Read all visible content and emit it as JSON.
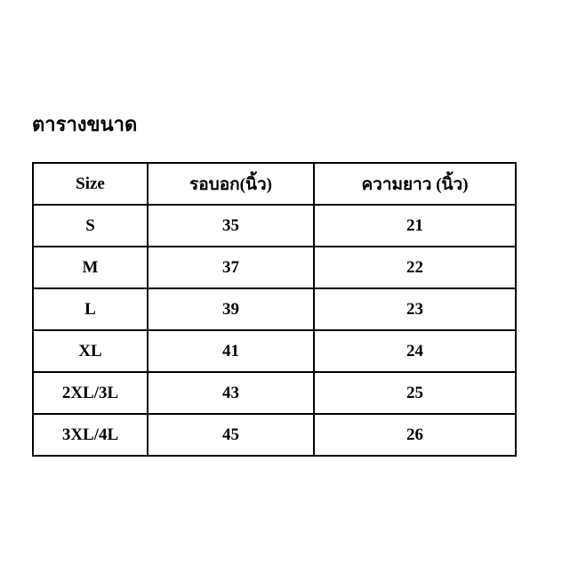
{
  "title": "ตารางขนาด",
  "table": {
    "headers": [
      "Size",
      "รอบอก(นิ้ว)",
      "ความยาว (นิ้ว)"
    ],
    "rows": [
      [
        "S",
        "35",
        "21"
      ],
      [
        "M",
        "37",
        "22"
      ],
      [
        "L",
        "39",
        "23"
      ],
      [
        "XL",
        "41",
        "24"
      ],
      [
        "2XL/3L",
        "43",
        "25"
      ],
      [
        "3XL/4L",
        "45",
        "26"
      ]
    ]
  }
}
